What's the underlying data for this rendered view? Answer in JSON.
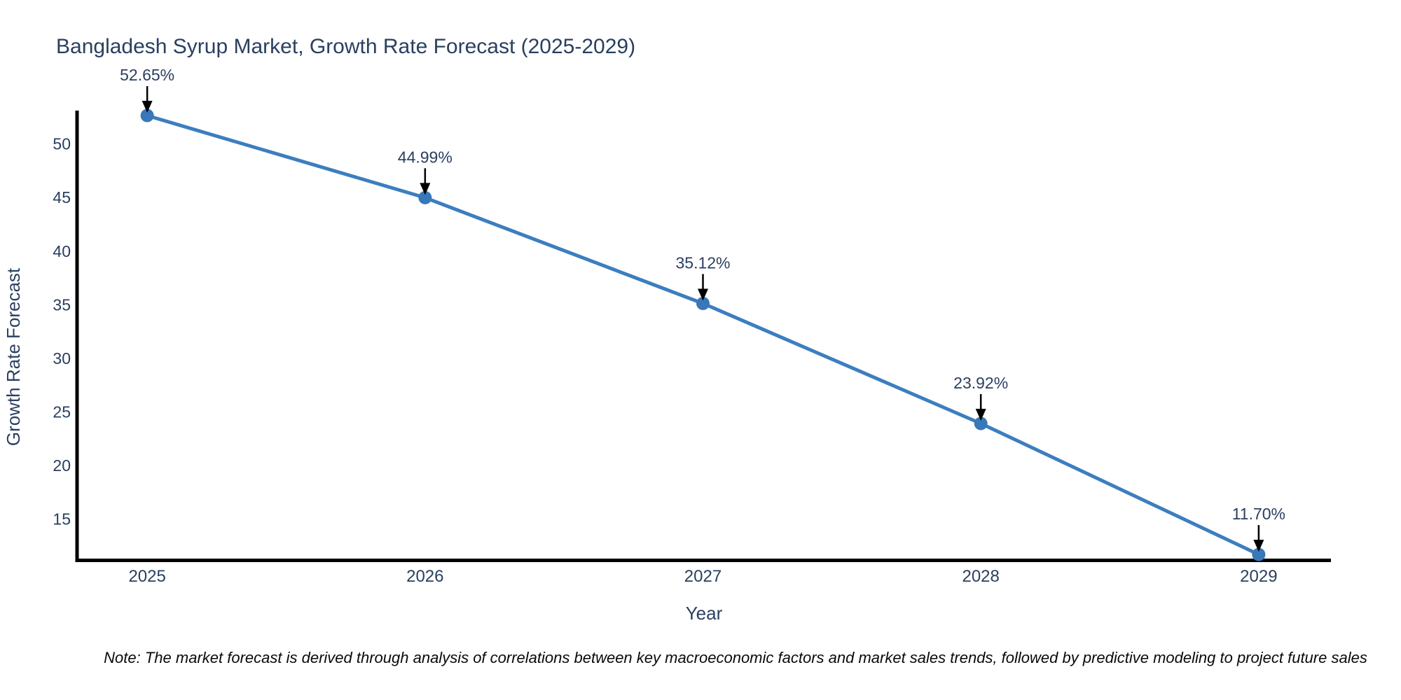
{
  "page": {
    "background": "#ffffff"
  },
  "footnote": "Note: The market forecast is derived through analysis of correlations between key macroeconomic factors and market sales trends, followed by predictive modeling to project future sales",
  "chart_data": {
    "type": "line",
    "title": "Bangladesh Syrup Market, Growth Rate Forecast (2025-2029)",
    "xlabel": "Year",
    "ylabel": "Growth Rate Forecast",
    "x": [
      2025,
      2026,
      2027,
      2028,
      2029
    ],
    "categories": [
      "2025",
      "2026",
      "2027",
      "2028",
      "2029"
    ],
    "values": [
      52.65,
      44.99,
      35.12,
      23.92,
      11.7
    ],
    "point_labels": [
      "52.65%",
      "44.99%",
      "35.12%",
      "23.92%",
      "11.70%"
    ],
    "y_ticks": [
      50,
      45,
      40,
      35,
      30,
      25,
      20,
      15
    ],
    "xlim": [
      2024.74,
      2029.26
    ],
    "ylim": [
      11.12,
      52.98
    ],
    "grid": false,
    "legend": "none",
    "colors": {
      "line": "#3c7ebf",
      "marker": "#3878b8",
      "axis": "#000000",
      "tick_text": "#2a3f5f",
      "annotation_text": "#2a3f5f",
      "annotation_arrow": "#000000"
    }
  }
}
